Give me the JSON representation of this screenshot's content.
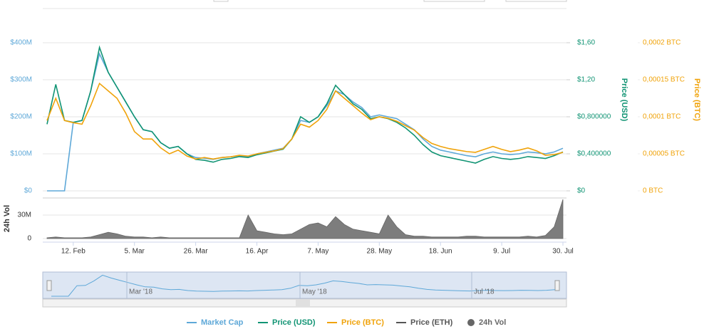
{
  "chart_data": {
    "type": "line",
    "categories": [
      null,
      null,
      null,
      "12. Feb",
      null,
      null,
      null,
      null,
      null,
      null,
      "5. Mar",
      null,
      null,
      null,
      null,
      null,
      null,
      "26. Mar",
      null,
      null,
      null,
      null,
      null,
      null,
      "16. Apr",
      null,
      null,
      null,
      null,
      null,
      null,
      "7. May",
      null,
      null,
      null,
      null,
      null,
      null,
      "28. May",
      null,
      null,
      null,
      null,
      null,
      null,
      "18. Jun",
      null,
      null,
      null,
      null,
      null,
      null,
      "9. Jul",
      null,
      null,
      null,
      null,
      null,
      null,
      "30. Jul"
    ],
    "ylim": [
      0,
      400000000
    ],
    "yticks": [
      {
        "value": 0,
        "label": "$0"
      },
      {
        "value": 100000000,
        "label": "$100M"
      },
      {
        "value": 200000000,
        "label": "$200M"
      },
      {
        "value": 300000000,
        "label": "$300M"
      },
      {
        "value": 400000000,
        "label": "$400M"
      }
    ],
    "y2lim": [
      0,
      1.6
    ],
    "y2ticks": [
      {
        "value": 0,
        "label": "$0"
      },
      {
        "value": 0.4,
        "label": "$0,400000"
      },
      {
        "value": 0.8,
        "label": "$0,800000"
      },
      {
        "value": 1.2,
        "label": "$1,20"
      },
      {
        "value": 1.6,
        "label": "$1,60"
      }
    ],
    "y2label": "Price (USD)",
    "y3lim": [
      0,
      0.0002
    ],
    "y3ticks": [
      {
        "value": 0,
        "label": "0 BTC"
      },
      {
        "value": 5e-05,
        "label": "0,00005 BTC"
      },
      {
        "value": 0.0001,
        "label": "0,0001 BTC"
      },
      {
        "value": 0.00015,
        "label": "0,00015 BTC"
      },
      {
        "value": 0.0002,
        "label": "0,0002 BTC"
      }
    ],
    "y3label": "Price (BTC)",
    "vol_ylim": [
      0,
      50000000
    ],
    "vol_yticks": [
      0,
      {
        "value": 30000000,
        "label": "30M"
      }
    ],
    "vol_label": "24h Vol",
    "grid": true,
    "navigator_labels": [
      "Mar '18",
      "May '18",
      "Jul '18"
    ],
    "series": [
      {
        "name": "Market Cap",
        "color": "#5ea8d8",
        "axis": "y",
        "values": [
          0,
          0,
          0,
          185000000,
          190000000,
          270000000,
          370000000,
          320000000,
          280000000,
          240000000,
          200000000,
          165000000,
          160000000,
          130000000,
          115000000,
          120000000,
          100000000,
          90000000,
          88000000,
          85000000,
          90000000,
          92000000,
          95000000,
          92000000,
          100000000,
          105000000,
          110000000,
          115000000,
          140000000,
          190000000,
          185000000,
          200000000,
          230000000,
          270000000,
          260000000,
          240000000,
          225000000,
          200000000,
          205000000,
          200000000,
          195000000,
          180000000,
          165000000,
          140000000,
          120000000,
          110000000,
          105000000,
          100000000,
          95000000,
          92000000,
          100000000,
          105000000,
          100000000,
          98000000,
          100000000,
          105000000,
          103000000,
          100000000,
          105000000,
          115000000
        ]
      },
      {
        "name": "Price (USD)",
        "color": "#119474",
        "axis": "y2",
        "values": [
          0.72,
          1.15,
          0.76,
          0.74,
          0.76,
          1.08,
          1.55,
          1.28,
          1.12,
          0.96,
          0.8,
          0.66,
          0.64,
          0.52,
          0.46,
          0.48,
          0.4,
          0.34,
          0.33,
          0.31,
          0.34,
          0.35,
          0.37,
          0.36,
          0.39,
          0.41,
          0.43,
          0.45,
          0.56,
          0.8,
          0.74,
          0.8,
          0.94,
          1.14,
          1.04,
          0.94,
          0.88,
          0.78,
          0.8,
          0.78,
          0.74,
          0.68,
          0.6,
          0.5,
          0.42,
          0.38,
          0.36,
          0.34,
          0.32,
          0.3,
          0.34,
          0.37,
          0.35,
          0.34,
          0.35,
          0.37,
          0.36,
          0.35,
          0.38,
          0.42
        ]
      },
      {
        "name": "Price (BTC)",
        "color": "#f0a30a",
        "axis": "y3",
        "values": [
          9.5e-05,
          0.000125,
          9.5e-05,
          9.2e-05,
          9e-05,
          0.000115,
          0.000145,
          0.000135,
          0.000125,
          0.000105,
          8e-05,
          7e-05,
          7e-05,
          5.8e-05,
          5e-05,
          5.5e-05,
          4.7e-05,
          4.3e-05,
          4.5e-05,
          4.3e-05,
          4.5e-05,
          4.6e-05,
          4.8e-05,
          4.7e-05,
          5e-05,
          5.2e-05,
          5.4e-05,
          5.7e-05,
          7e-05,
          9e-05,
          8.6e-05,
          9.5e-05,
          0.00011,
          0.000135,
          0.000125,
          0.000115,
          0.000105,
          9.6e-05,
          0.0001,
          9.8e-05,
          9.4e-05,
          8.8e-05,
          8.2e-05,
          7.2e-05,
          6.4e-05,
          6e-05,
          5.7e-05,
          5.5e-05,
          5.3e-05,
          5.2e-05,
          5.6e-05,
          6e-05,
          5.6e-05,
          5.3e-05,
          5.5e-05,
          5.8e-05,
          5.4e-05,
          4.8e-05,
          4.9e-05,
          5.2e-05
        ]
      },
      {
        "name": "Price (ETH)",
        "color": "#555555",
        "visible": false
      },
      {
        "name": "24h Vol",
        "color": "#666666",
        "axis": "vol",
        "values": [
          1000000,
          2000000,
          1000000,
          1000000,
          1000000,
          2000000,
          5000000,
          8000000,
          6000000,
          3000000,
          2000000,
          2000000,
          1000000,
          2000000,
          1000000,
          1000000,
          1000000,
          1000000,
          1000000,
          1000000,
          1000000,
          1000000,
          1000000,
          30000000,
          10000000,
          8000000,
          6000000,
          5000000,
          6000000,
          12000000,
          18000000,
          20000000,
          15000000,
          28000000,
          18000000,
          12000000,
          10000000,
          8000000,
          6000000,
          30000000,
          15000000,
          5000000,
          3000000,
          3000000,
          2000000,
          2000000,
          2000000,
          2000000,
          3000000,
          3000000,
          2000000,
          2000000,
          2000000,
          2000000,
          2000000,
          3000000,
          2000000,
          4000000,
          15000000,
          50000000
        ]
      }
    ]
  }
}
